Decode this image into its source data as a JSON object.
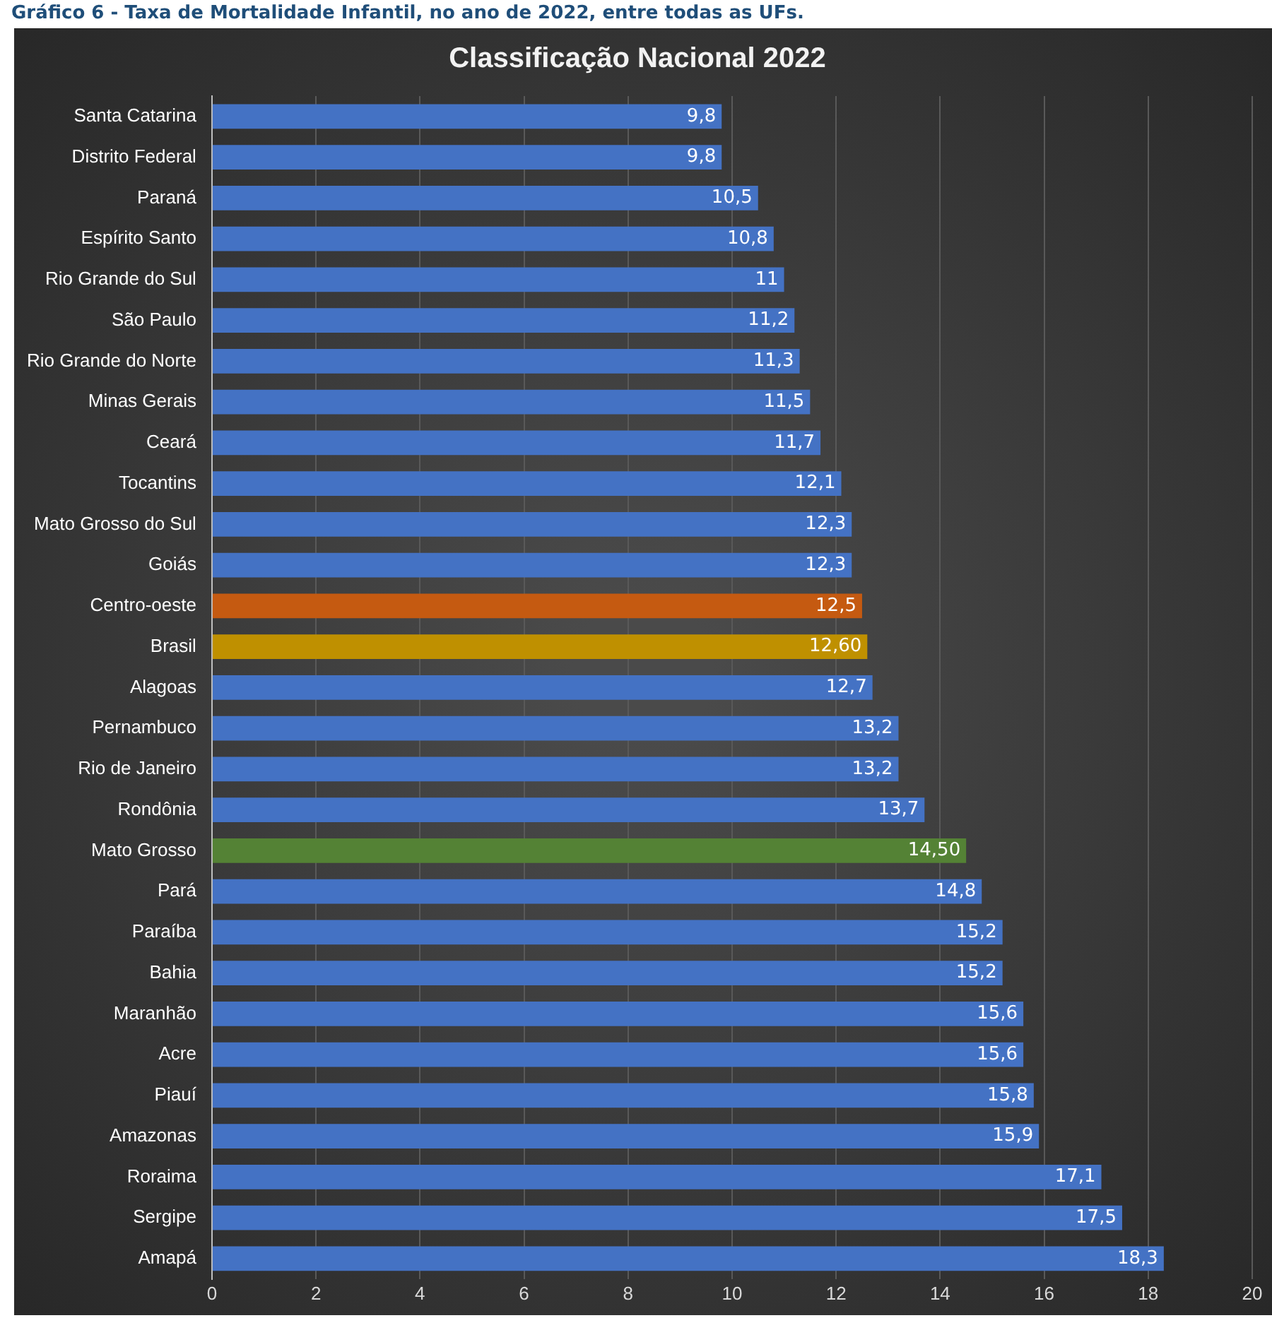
{
  "chart_data": {
    "type": "bar",
    "orientation": "horizontal",
    "title": "Classificação Nacional 2022",
    "annotations": [
      "Gráfico 6 - Taxa de Mortalidade Infantil, no ano de 2022, entre todas as UFs."
    ],
    "categories": [
      "Santa Catarina",
      "Distrito Federal",
      "Paraná",
      "Espírito Santo",
      "Rio Grande do Sul",
      "São Paulo",
      "Rio Grande do Norte",
      "Minas Gerais",
      "Ceará",
      "Tocantins",
      "Mato Grosso do Sul",
      "Goiás",
      "Centro-oeste",
      "Brasil",
      "Alagoas",
      "Pernambuco",
      "Rio de Janeiro",
      "Rondônia",
      "Mato Grosso",
      "Pará",
      "Paraíba",
      "Bahia",
      "Maranhão",
      "Acre",
      "Piauí",
      "Amazonas",
      "Roraima",
      "Sergipe",
      "Amapá"
    ],
    "values": [
      9.8,
      9.8,
      10.5,
      10.8,
      11,
      11.2,
      11.3,
      11.5,
      11.7,
      12.1,
      12.3,
      12.3,
      12.5,
      12.6,
      12.7,
      13.2,
      13.2,
      13.7,
      14.5,
      14.8,
      15.2,
      15.2,
      15.6,
      15.6,
      15.8,
      15.9,
      17.1,
      17.5,
      18.3
    ],
    "value_labels": [
      "9,8",
      "9,8",
      "10,5",
      "10,8",
      "11",
      "11,2",
      "11,3",
      "11,5",
      "11,7",
      "12,1",
      "12,3",
      "12,3",
      "12,5",
      "12,60",
      "12,7",
      "13,2",
      "13,2",
      "13,7",
      "14,50",
      "14,8",
      "15,2",
      "15,2",
      "15,6",
      "15,6",
      "15,8",
      "15,9",
      "17,1",
      "17,5",
      "18,3"
    ],
    "colors": [
      "#4472c4",
      "#4472c4",
      "#4472c4",
      "#4472c4",
      "#4472c4",
      "#4472c4",
      "#4472c4",
      "#4472c4",
      "#4472c4",
      "#4472c4",
      "#4472c4",
      "#4472c4",
      "#c55a11",
      "#bf9000",
      "#4472c4",
      "#4472c4",
      "#4472c4",
      "#4472c4",
      "#548235",
      "#4472c4",
      "#4472c4",
      "#4472c4",
      "#4472c4",
      "#4472c4",
      "#4472c4",
      "#4472c4",
      "#4472c4",
      "#4472c4",
      "#4472c4"
    ],
    "xlim": [
      0,
      20
    ],
    "xticks": [
      0,
      2,
      4,
      6,
      8,
      10,
      12,
      14,
      16,
      18,
      20
    ],
    "grid": "x",
    "legend": false
  }
}
